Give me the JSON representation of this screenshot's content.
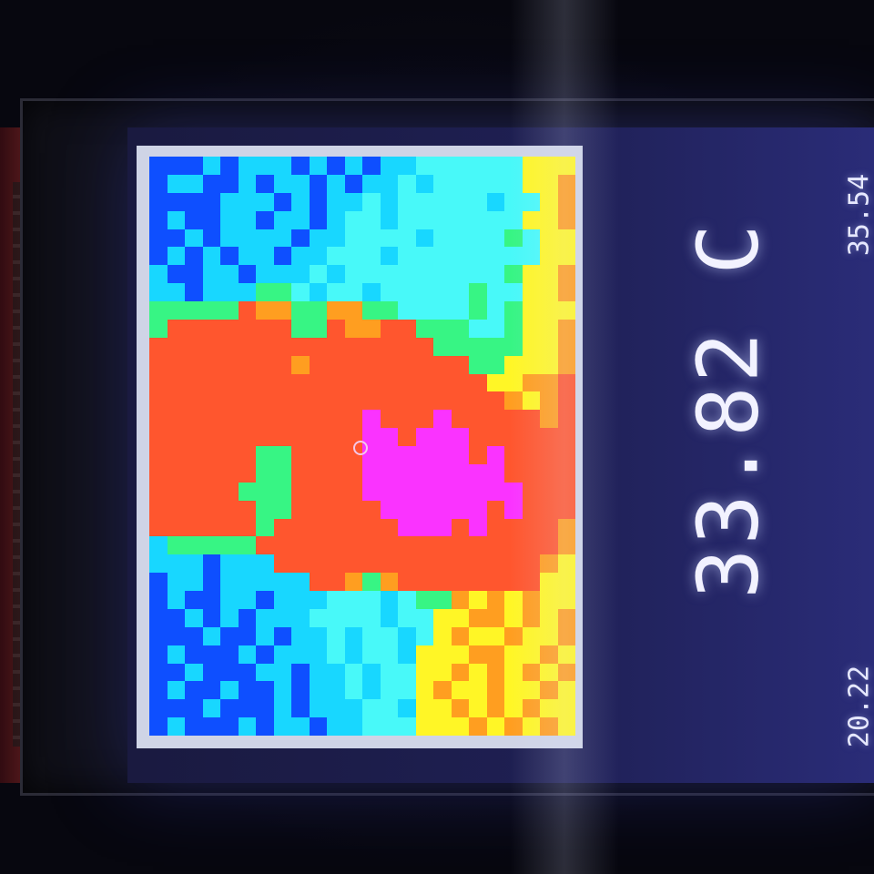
{
  "display": {
    "temperature": "33.82 C",
    "scale_max": "35.54",
    "scale_min": "20.22"
  },
  "colors": {
    "cold": "#1a4cff",
    "cool": "#34c6f0",
    "mid": "#4fe08a",
    "warm": "#f5e84a",
    "hot": "#ff5a3c",
    "hottest": "#d43cff"
  },
  "icons": {
    "crosshair": "crosshair-icon"
  },
  "thermal_map": [
    "BBBCBCCCBCBCBCCSSSSSSYYY",
    "BCCBBCBCCBCBCCSCSSSSSYYO",
    "BBBBCCCBCBCCSCSSSSSCSSYO",
    "BCBBCCBCCBCSSCSSSSSSSYYO",
    "BBCBCCCCBCCSSSSCSSSSGSYY",
    "BCBCBCCBCCSSSCSSSSSSSSYY",
    "CBBCCBCCCSCSSSSSSSSSGYYO",
    "CCBCCCGGSCSSCSSSSSGSSYYO",
    "GGGGGROOGGOOGGSSSSGSGYYY",
    "GRRRRRRRGGROORRGGGSSGYYO",
    "RRRRRRRRRRRRRRRRGGGGGYYO",
    "RRRRRRRRORRRRRRRRRGGYYYO",
    "RRRRRRRRRRRRRRRRRRRYYOOR",
    "RRRRRRRRRRRRRRRRRRRROYOR",
    "RRRRRRRRRRRRMRRRMRRRRROR",
    "RRRRRRRRRRRRMMRMMMRRRRRR",
    "RRRRRRGGRRRRMMMMMMRMRRRR",
    "RRRRRRGGRRRRMMMMMMMMRRRR",
    "RRRRRGGGRRRRMMMMMMMMMRRR",
    "RRRRRRGGRRRRRMMMMMMRMRRR",
    "RRRRRRGRRRRRRRMMMRMRRRRO",
    "CGGGGGRRRRRRRRRRRRRRRRRO",
    "CCCBCCCRRRRRRRRRRRRRRROY",
    "BCCBCCCCCRROGORRRRRRRRYY",
    "BCBBCCBCCCSSSCSGGOYOYOYY",
    "BBCBCBCCCSSSSCSSYYOOYOYO",
    "BBBCBBCBCCSCSSCSYOYYOYYO",
    "BCBBBCBCCCSCSSCYYYOOYYOY",
    "BBCBBBCCBCCSCSSYYOYOYOYO",
    "BCBBCBBCBCCSCSSYOYYOYYOY",
    "BBBCBBBCBCCCSSCYYOYOYOYY",
    "BCBBBCBCCBCCSSSYYYOYOYOY"
  ]
}
